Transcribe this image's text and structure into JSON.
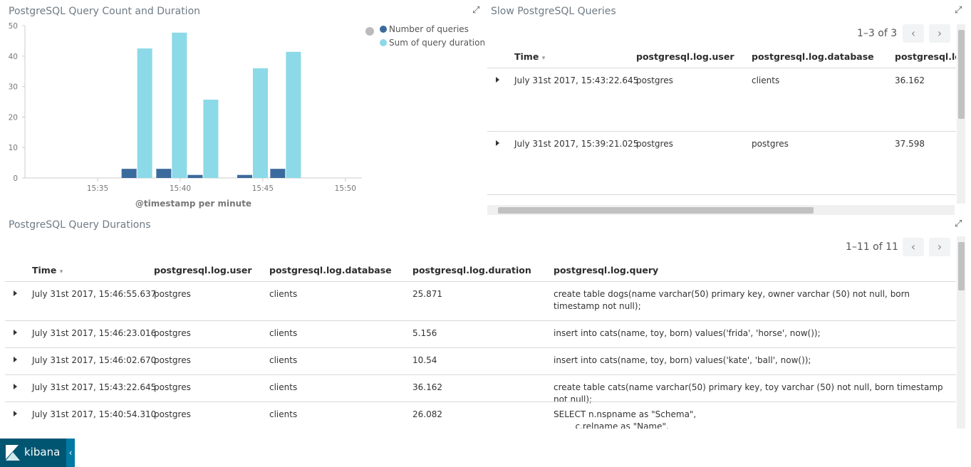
{
  "chart_data": {
    "type": "bar",
    "title": "PostgreSQL Query Count and Duration",
    "x_label": "@timestamp per minute",
    "x": [
      37.4,
      39.5,
      41.4,
      44.4,
      46.4
    ],
    "xlim": [
      30.6,
      51
    ],
    "xticks": [
      {
        "value": 35,
        "label": "15:35"
      },
      {
        "value": 40,
        "label": "15:40"
      },
      {
        "value": 45,
        "label": "15:45"
      },
      {
        "value": 50,
        "label": "15:50"
      }
    ],
    "ylim": [
      0,
      50
    ],
    "yticks": [
      0,
      10,
      20,
      30,
      40,
      50
    ],
    "legend": "top-right",
    "series": [
      {
        "name": "Number of queries",
        "color": "#3b6a9d",
        "values": [
          3,
          3,
          1,
          1,
          3
        ]
      },
      {
        "name": "Sum of query duration",
        "color": "#8cd9e7",
        "values": [
          42.5,
          47.7,
          25.7,
          36,
          41.4
        ]
      }
    ]
  },
  "slow_queries": {
    "title": "Slow PostgreSQL Queries",
    "pagination": "1–3 of 3",
    "columns": [
      "Time",
      "postgresql.log.user",
      "postgresql.log.database",
      "postgresql.log.duration"
    ],
    "rows": [
      [
        "July 31st 2017, 15:43:22.645",
        "postgres",
        "clients",
        "36.162"
      ],
      [
        "July 31st 2017, 15:39:21.025",
        "postgres",
        "postgres",
        "37.598"
      ]
    ]
  },
  "query_durations": {
    "title": "PostgreSQL Query Durations",
    "pagination": "1–11 of 11",
    "columns": [
      "Time",
      "postgresql.log.user",
      "postgresql.log.database",
      "postgresql.log.duration",
      "postgresql.log.query"
    ],
    "rows": [
      [
        "July 31st 2017, 15:46:55.637",
        "postgres",
        "clients",
        "25.871",
        "create table dogs(name varchar(50) primary key, owner varchar (50) not null, born timestamp not null);"
      ],
      [
        "July 31st 2017, 15:46:23.016",
        "postgres",
        "clients",
        "5.156",
        "insert into cats(name, toy, born) values('frida', 'horse', now());"
      ],
      [
        "July 31st 2017, 15:46:02.670",
        "postgres",
        "clients",
        "10.54",
        "insert into cats(name, toy, born) values('kate', 'ball', now());"
      ],
      [
        "July 31st 2017, 15:43:22.645",
        "postgres",
        "clients",
        "36.162",
        "create table cats(name varchar(50) primary key, toy varchar (50) not null, born timestamp not null);"
      ],
      [
        "July 31st 2017, 15:40:54.310",
        "postgres",
        "clients",
        "26.082",
        "SELECT n.nspname as \"Schema\",\n        c.relname as \"Name\"."
      ]
    ]
  },
  "footer": {
    "brand": "kibana"
  }
}
